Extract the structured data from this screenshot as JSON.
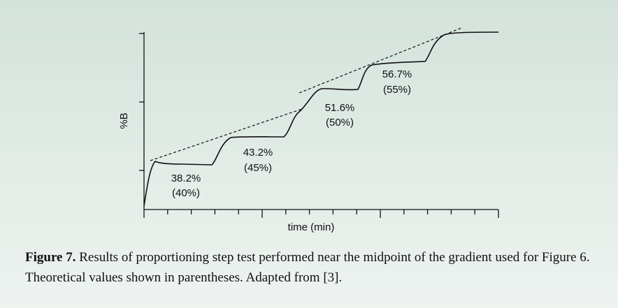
{
  "figure": {
    "y_label": "%B",
    "x_label": "time (min)",
    "annotations": [
      {
        "measured": "38.2%",
        "theoretical": "(40%)"
      },
      {
        "measured": "43.2%",
        "theoretical": "(45%)"
      },
      {
        "measured": "51.6%",
        "theoretical": "(50%)"
      },
      {
        "measured": "56.7%",
        "theoretical": "(55%)"
      }
    ]
  },
  "caption": {
    "label": "Figure 7.",
    "text": " Results of proportioning step test performed near the midpoint of the gradient used for Figure 6. Theoretical values shown in parentheses. Adapted from [3]."
  }
}
